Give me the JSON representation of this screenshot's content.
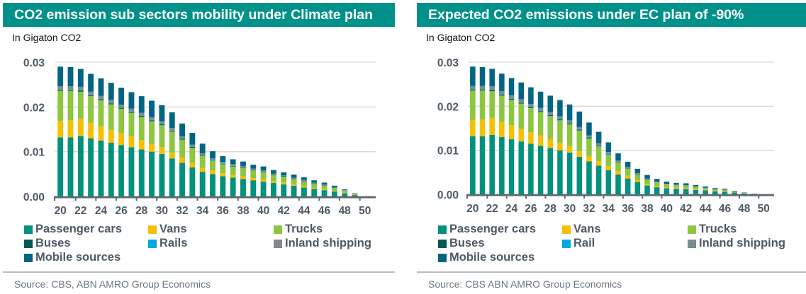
{
  "charts": [
    {
      "title": "CO2 emission sub sectors mobility under Climate plan",
      "unit_label": "In Gigaton CO2",
      "source": "Source: CBS, ABN AMRO Group Economics",
      "legend": [
        "Passenger cars",
        "Vans",
        "Trucks",
        "Buses",
        "Rails",
        "Inland shipping",
        "Mobile sources"
      ]
    },
    {
      "title": "Expected CO2 emissions under EC plan of -90%",
      "unit_label": "In Gigaton CO2",
      "source": "Source: CBS ABN AMRO Group Economics",
      "legend": [
        "Passenger cars",
        "Vans",
        "Trucks",
        "Buses",
        "Rail",
        "Inland shipping",
        "Mobile sources"
      ]
    }
  ],
  "colors": {
    "title_bar": "#00928a",
    "Passenger cars": "#00917f",
    "Vans": "#f5c000",
    "Trucks": "#8dc63f",
    "Buses": "#005a52",
    "Rails": "#00a8e1",
    "Inland shipping": "#7c8a94",
    "Mobile sources": "#006583",
    "grid": "#d9d9d9",
    "axis": "#5f6b73"
  },
  "chart_data": [
    {
      "type": "bar",
      "stacked": true,
      "title": "CO2 emission sub sectors mobility under Climate plan",
      "xlabel": "",
      "ylabel": "In Gigaton CO2",
      "ylim": [
        0,
        0.03
      ],
      "yticks": [
        "0.00",
        "0.01",
        "0.02",
        "0.03"
      ],
      "grid": true,
      "legend_position": "bottom",
      "categories": [
        "20",
        "21",
        "22",
        "23",
        "24",
        "25",
        "26",
        "27",
        "28",
        "29",
        "30",
        "31",
        "32",
        "33",
        "34",
        "35",
        "36",
        "37",
        "38",
        "39",
        "40",
        "41",
        "42",
        "43",
        "44",
        "45",
        "46",
        "47",
        "48",
        "49",
        "50"
      ],
      "xtick_labels": [
        "20",
        "22",
        "24",
        "26",
        "28",
        "30",
        "32",
        "34",
        "36",
        "38",
        "40",
        "42",
        "44",
        "46",
        "48",
        "50"
      ],
      "series": [
        {
          "name": "Passenger cars",
          "values": [
            0.0132,
            0.0132,
            0.0135,
            0.013,
            0.0125,
            0.012,
            0.0115,
            0.011,
            0.0105,
            0.01,
            0.0095,
            0.0085,
            0.0075,
            0.0065,
            0.0055,
            0.005,
            0.0045,
            0.0042,
            0.0039,
            0.0036,
            0.0033,
            0.003,
            0.0027,
            0.0024,
            0.002,
            0.0017,
            0.0014,
            0.0011,
            0.0007,
            0.0003,
            0.0
          ]
        },
        {
          "name": "Vans",
          "values": [
            0.0037,
            0.0038,
            0.0039,
            0.0035,
            0.0032,
            0.0029,
            0.0026,
            0.0024,
            0.0021,
            0.0017,
            0.0015,
            0.0013,
            0.0012,
            0.001,
            0.0009,
            0.0008,
            0.0007,
            0.0006,
            0.0006,
            0.0005,
            0.0005,
            0.0004,
            0.0004,
            0.0003,
            0.0003,
            0.0002,
            0.0002,
            0.0001,
            0.0001,
            0.0001,
            0.0
          ]
        },
        {
          "name": "Trucks",
          "values": [
            0.0067,
            0.0066,
            0.006,
            0.0059,
            0.0058,
            0.0057,
            0.0055,
            0.0053,
            0.0052,
            0.0051,
            0.0049,
            0.0047,
            0.004,
            0.0034,
            0.0026,
            0.0022,
            0.002,
            0.0019,
            0.0018,
            0.0017,
            0.0016,
            0.0014,
            0.0013,
            0.0012,
            0.0011,
            0.0009,
            0.0008,
            0.0007,
            0.0005,
            0.0002,
            0.0
          ]
        },
        {
          "name": "Buses",
          "values": [
            0.0002,
            0.0002,
            0.0003,
            0.0002,
            0.0002,
            0.0002,
            0.0002,
            0.0002,
            0.0002,
            0.0002,
            0.0002,
            0.0002,
            0.0002,
            0.0002,
            0.0001,
            0.0001,
            0.0001,
            0.0001,
            0.0001,
            0.0001,
            0.0001,
            0.0001,
            0.0001,
            0.0001,
            0.0001,
            0.0001,
            0.0001,
            0.0001,
            0.0,
            0.0,
            0.0
          ]
        },
        {
          "name": "Rails",
          "values": [
            0.0001,
            0.0001,
            0.0001,
            0.0001,
            0.0001,
            0.0001,
            0.0001,
            0.0001,
            0.0001,
            0.0001,
            0.0001,
            0.0001,
            0.0001,
            0.0001,
            0.0001,
            0.0001,
            0.0001,
            0.0001,
            0.0001,
            0.0,
            0.0,
            0.0,
            0.0,
            0.0,
            0.0,
            0.0,
            0.0,
            0.0,
            0.0,
            0.0,
            0.0
          ]
        },
        {
          "name": "Inland shipping",
          "values": [
            0.0007,
            0.0007,
            0.0007,
            0.0007,
            0.0007,
            0.0007,
            0.0006,
            0.0006,
            0.0006,
            0.0006,
            0.0006,
            0.0005,
            0.0004,
            0.0004,
            0.0004,
            0.0003,
            0.0003,
            0.0003,
            0.0003,
            0.0003,
            0.0003,
            0.0002,
            0.0002,
            0.0002,
            0.0002,
            0.0002,
            0.0002,
            0.0001,
            0.0001,
            0.0,
            0.0
          ]
        },
        {
          "name": "Mobile sources",
          "values": [
            0.0044,
            0.0043,
            0.004,
            0.004,
            0.0039,
            0.0038,
            0.0038,
            0.0037,
            0.0037,
            0.0037,
            0.0036,
            0.0035,
            0.0029,
            0.0026,
            0.0022,
            0.0016,
            0.0013,
            0.0011,
            0.001,
            0.0009,
            0.0009,
            0.0008,
            0.0007,
            0.0007,
            0.0006,
            0.0005,
            0.0004,
            0.0003,
            0.0002,
            0.0001,
            0.0
          ]
        }
      ]
    },
    {
      "type": "bar",
      "stacked": true,
      "title": "Expected CO2 emissions under EC plan of -90%",
      "xlabel": "",
      "ylabel": "In Gigaton CO2",
      "ylim": [
        0,
        0.03
      ],
      "yticks": [
        "0.00",
        "0.01",
        "0.02",
        "0.03"
      ],
      "grid": true,
      "legend_position": "bottom",
      "categories": [
        "20",
        "21",
        "22",
        "23",
        "24",
        "25",
        "26",
        "27",
        "28",
        "29",
        "30",
        "31",
        "32",
        "33",
        "34",
        "35",
        "36",
        "37",
        "38",
        "39",
        "40",
        "41",
        "42",
        "43",
        "44",
        "45",
        "46",
        "47",
        "48",
        "49",
        "50"
      ],
      "xtick_labels": [
        "20",
        "22",
        "24",
        "26",
        "28",
        "30",
        "32",
        "34",
        "36",
        "38",
        "40",
        "42",
        "44",
        "46",
        "48",
        "50"
      ],
      "series": [
        {
          "name": "Passenger cars",
          "values": [
            0.0132,
            0.0132,
            0.0135,
            0.013,
            0.0125,
            0.012,
            0.0115,
            0.011,
            0.0105,
            0.01,
            0.0095,
            0.0085,
            0.0075,
            0.0065,
            0.0055,
            0.0045,
            0.0036,
            0.0028,
            0.002,
            0.0016,
            0.0014,
            0.0013,
            0.0012,
            0.001,
            0.0009,
            0.0007,
            0.0006,
            0.0004,
            0.0002,
            0.0001,
            0.0
          ]
        },
        {
          "name": "Vans",
          "values": [
            0.0037,
            0.0038,
            0.0039,
            0.0035,
            0.0032,
            0.0029,
            0.0026,
            0.0024,
            0.0021,
            0.0017,
            0.0015,
            0.0013,
            0.0012,
            0.001,
            0.0009,
            0.0008,
            0.0006,
            0.0004,
            0.0003,
            0.0003,
            0.0002,
            0.0002,
            0.0002,
            0.0002,
            0.0001,
            0.0001,
            0.0001,
            0.0001,
            0.0,
            0.0,
            0.0
          ]
        },
        {
          "name": "Trucks",
          "values": [
            0.0067,
            0.0066,
            0.006,
            0.0059,
            0.0058,
            0.0057,
            0.0055,
            0.0053,
            0.0052,
            0.0051,
            0.0049,
            0.0047,
            0.004,
            0.0034,
            0.0026,
            0.002,
            0.0016,
            0.0013,
            0.001,
            0.0008,
            0.0007,
            0.0006,
            0.0006,
            0.0005,
            0.0004,
            0.0003,
            0.0003,
            0.0002,
            0.0001,
            0.0001,
            0.0
          ]
        },
        {
          "name": "Buses",
          "values": [
            0.0002,
            0.0002,
            0.0003,
            0.0002,
            0.0002,
            0.0002,
            0.0002,
            0.0002,
            0.0002,
            0.0002,
            0.0002,
            0.0002,
            0.0002,
            0.0002,
            0.0001,
            0.0001,
            0.0001,
            0.0001,
            0.0001,
            0.0,
            0.0,
            0.0,
            0.0,
            0.0,
            0.0,
            0.0,
            0.0,
            0.0,
            0.0,
            0.0,
            0.0
          ]
        },
        {
          "name": "Rail",
          "values": [
            0.0001,
            0.0001,
            0.0001,
            0.0001,
            0.0001,
            0.0001,
            0.0001,
            0.0001,
            0.0001,
            0.0001,
            0.0001,
            0.0001,
            0.0001,
            0.0001,
            0.0001,
            0.0,
            0.0,
            0.0,
            0.0,
            0.0,
            0.0,
            0.0,
            0.0,
            0.0,
            0.0,
            0.0,
            0.0,
            0.0,
            0.0,
            0.0,
            0.0
          ]
        },
        {
          "name": "Inland shipping",
          "values": [
            0.0007,
            0.0007,
            0.0007,
            0.0007,
            0.0007,
            0.0007,
            0.0006,
            0.0006,
            0.0006,
            0.0006,
            0.0006,
            0.0005,
            0.0004,
            0.0004,
            0.0004,
            0.0003,
            0.0003,
            0.0002,
            0.0002,
            0.0002,
            0.0001,
            0.0001,
            0.0001,
            0.0001,
            0.0001,
            0.0001,
            0.0001,
            0.0,
            0.0,
            0.0,
            0.0
          ]
        },
        {
          "name": "Mobile sources",
          "values": [
            0.0044,
            0.0043,
            0.004,
            0.004,
            0.0039,
            0.0038,
            0.0038,
            0.0037,
            0.0037,
            0.0037,
            0.0036,
            0.0035,
            0.0029,
            0.0026,
            0.0022,
            0.0016,
            0.0012,
            0.001,
            0.0008,
            0.0006,
            0.0005,
            0.0004,
            0.0004,
            0.0003,
            0.0003,
            0.0002,
            0.0002,
            0.0001,
            0.0001,
            0.0,
            0.0
          ]
        }
      ]
    }
  ]
}
